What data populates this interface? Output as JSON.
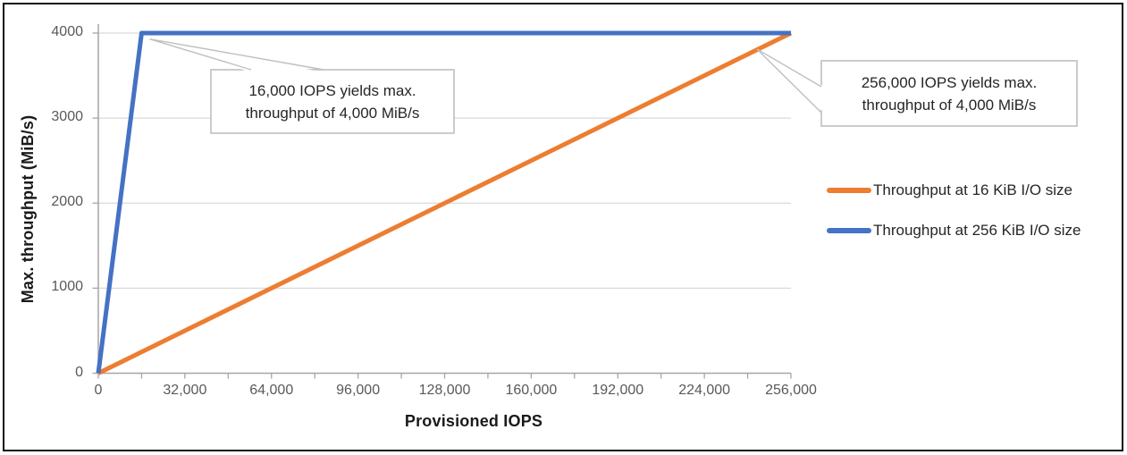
{
  "figure": {
    "background": "#ffffff",
    "frame_color": "#101010"
  },
  "colors": {
    "grid": "#D9D9D9",
    "axis": "#A6A6A6",
    "tick_label": "#595959",
    "callout_border": "#BFBFBF",
    "callout_text": "#262626"
  },
  "chart_data": {
    "type": "line",
    "title": "",
    "xlabel": "Provisioned IOPS",
    "ylabel": "Max. throughput (MiB/s)",
    "xlim": [
      0,
      256000
    ],
    "ylim": [
      0,
      4000
    ],
    "grid": "horizontal",
    "legend_position": "right-center",
    "x_tick_interval_minor": 16000,
    "xticks": [
      0,
      32000,
      64000,
      96000,
      128000,
      160000,
      192000,
      224000,
      256000
    ],
    "xtick_labels": [
      "0",
      "32,000",
      "64,000",
      "96,000",
      "128,000",
      "160,000",
      "192,000",
      "224,000",
      "256,000"
    ],
    "yticks": [
      0,
      1000,
      2000,
      3000,
      4000
    ],
    "ytick_labels": [
      "0",
      "1000",
      "2000",
      "3000",
      "4000"
    ],
    "series": [
      {
        "name": "Throughput at 16 KiB I/O size",
        "color": "#ED7D31",
        "points": [
          [
            0,
            0
          ],
          [
            256000,
            4000
          ]
        ]
      },
      {
        "name": "Throughput at 256 KiB I/O size",
        "color": "#4472C4",
        "points": [
          [
            0,
            0
          ],
          [
            16000,
            4000
          ],
          [
            256000,
            4000
          ]
        ]
      }
    ],
    "annotations": [
      {
        "line1": "16,000 IOPS yields max.",
        "line2": "throughput of 4,000 MiB/s",
        "anchor": {
          "x": 19000,
          "y": 3930
        }
      },
      {
        "line1": "256,000 IOPS yields max.",
        "line2": "throughput of 4,000 MiB/s",
        "anchor": {
          "x": 243500,
          "y": 3810
        }
      }
    ]
  }
}
